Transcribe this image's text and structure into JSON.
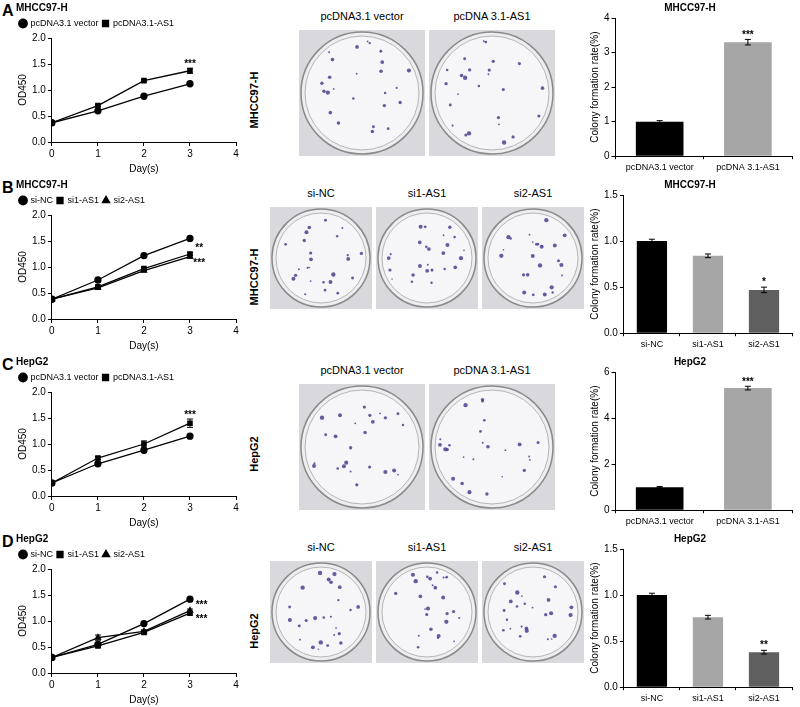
{
  "chart_data": [
    {
      "type": "line",
      "title": "MHCC97-H",
      "x_label": "Day(s)",
      "y_label": "OD450",
      "x": [
        0,
        1,
        2,
        3
      ],
      "series": [
        {
          "name": "pcDNA3.1 vector",
          "color": "#000000",
          "marker": "circle",
          "line_style": "solid",
          "values": [
            0.37,
            0.6,
            0.88,
            1.12
          ],
          "errors": [
            0.01,
            0.02,
            0.02,
            0.03
          ]
        },
        {
          "name": "pcDNA3.1-AS1",
          "color": "#000000",
          "marker": "square",
          "line_style": "solid",
          "values": [
            0.37,
            0.7,
            1.18,
            1.37
          ],
          "errors": [
            0.01,
            0.02,
            0.02,
            0.05
          ]
        }
      ],
      "xlim": [
        0,
        4
      ],
      "xticks": [
        0,
        1,
        2,
        3,
        4
      ],
      "ylim": [
        0,
        2
      ],
      "yticks": [
        {
          "value": 0,
          "label": "0.0"
        },
        {
          "value": 0.5,
          "label": "0.5"
        },
        {
          "value": 1,
          "label": "1.0"
        },
        {
          "value": 1.5,
          "label": "1.5"
        },
        {
          "value": 2,
          "label": "2.0"
        }
      ],
      "grid": false,
      "legend": "upper left",
      "annotations": [
        {
          "text": "***",
          "x": 3,
          "y": 1.5
        }
      ]
    },
    {
      "type": "bar",
      "title": "MHCC97-H",
      "y_label": "Colony formation rate(%)",
      "categories": [
        "pcDNA3.1 vector",
        "pcDNA 3.1-AS1"
      ],
      "values": [
        1.0,
        3.3
      ],
      "errors": [
        0.03,
        0.08
      ],
      "colors": [
        "#000000",
        "#a6a6a6"
      ],
      "ylim": [
        0,
        4
      ],
      "yticks": [
        0,
        1,
        2,
        3,
        4
      ],
      "grid": false,
      "annotations": [
        {
          "text": "***",
          "x": "pcDNA 3.1-AS1",
          "y": 3.5
        }
      ]
    },
    {
      "type": "line",
      "title": "MHCC97-H",
      "x_label": "Day(s)",
      "y_label": "OD450",
      "x": [
        0,
        1,
        2,
        3
      ],
      "series": [
        {
          "name": "si-NC",
          "color": "#000000",
          "marker": "circle",
          "line_style": "solid",
          "values": [
            0.38,
            0.75,
            1.22,
            1.55
          ],
          "errors": [
            0.01,
            0.02,
            0.02,
            0.02
          ]
        },
        {
          "name": "si1-AS1",
          "color": "#000000",
          "marker": "square",
          "line_style": "solid",
          "values": [
            0.38,
            0.62,
            0.97,
            1.25
          ],
          "errors": [
            0.01,
            0.02,
            0.02,
            0.03
          ]
        },
        {
          "name": "si2-AS1",
          "color": "#000000",
          "marker": "triangle",
          "line_style": "solid",
          "values": [
            0.38,
            0.6,
            0.93,
            1.2
          ],
          "errors": [
            0.01,
            0.02,
            0.02,
            0.03
          ]
        }
      ],
      "xlim": [
        0,
        4
      ],
      "xticks": [
        0,
        1,
        2,
        3,
        4
      ],
      "ylim": [
        0,
        2
      ],
      "yticks": [
        {
          "value": 0,
          "label": "0.0"
        },
        {
          "value": 0.5,
          "label": "0.5"
        },
        {
          "value": 1,
          "label": "1.0"
        },
        {
          "value": 1.5,
          "label": "1.5"
        },
        {
          "value": 2,
          "label": "2.0"
        }
      ],
      "grid": false,
      "legend": "upper left",
      "annotations": [
        {
          "text": "**",
          "x": 3.2,
          "y": 1.36
        },
        {
          "text": "***",
          "x": 3.2,
          "y": 1.08
        }
      ]
    },
    {
      "type": "bar",
      "title": "MHCC97-H",
      "y_label": "Colony formation rate(%)",
      "categories": [
        "si-NC",
        "si1-AS1",
        "si2-AS1"
      ],
      "values": [
        1.0,
        0.84,
        0.47
      ],
      "errors": [
        0.02,
        0.02,
        0.03
      ],
      "colors": [
        "#000000",
        "#a6a6a6",
        "#5f5f5f"
      ],
      "ylim": [
        0,
        1.5
      ],
      "yticks": [
        {
          "value": 0,
          "label": "0.0"
        },
        {
          "value": 0.5,
          "label": "0.5"
        },
        {
          "value": 1,
          "label": "1.0"
        },
        {
          "value": 1.5,
          "label": "1.5"
        }
      ],
      "grid": false,
      "annotations": [
        {
          "text": "*",
          "x": "si2-AS1",
          "y": 0.55
        }
      ]
    },
    {
      "type": "line",
      "title": "HepG2",
      "x_label": "Day(s)",
      "y_label": "OD450",
      "x": [
        0,
        1,
        2,
        3
      ],
      "series": [
        {
          "name": "pcDNA3.1 vector",
          "color": "#000000",
          "marker": "circle",
          "line_style": "solid",
          "values": [
            0.25,
            0.62,
            0.88,
            1.15
          ],
          "errors": [
            0.01,
            0.02,
            0.03,
            0.03
          ]
        },
        {
          "name": "pcDNA3.1-AS1",
          "color": "#000000",
          "marker": "square",
          "line_style": "solid",
          "values": [
            0.25,
            0.73,
            1.0,
            1.4
          ],
          "errors": [
            0.01,
            0.03,
            0.06,
            0.08
          ]
        }
      ],
      "xlim": [
        0,
        4
      ],
      "xticks": [
        0,
        1,
        2,
        3,
        4
      ],
      "ylim": [
        0,
        2
      ],
      "yticks": [
        {
          "value": 0,
          "label": "0.0"
        },
        {
          "value": 0.5,
          "label": "0.5"
        },
        {
          "value": 1,
          "label": "1.0"
        },
        {
          "value": 1.5,
          "label": "1.5"
        },
        {
          "value": 2,
          "label": "2.0"
        }
      ],
      "grid": false,
      "legend": "upper left",
      "annotations": [
        {
          "text": "***",
          "x": 3,
          "y": 1.56
        }
      ]
    },
    {
      "type": "bar",
      "title": "HepG2",
      "y_label": "Colony formation rate(%)",
      "categories": [
        "pcDNA3.1 vector",
        "pcDNA 3.1-AS1"
      ],
      "values": [
        1.0,
        5.3
      ],
      "errors": [
        0.03,
        0.08
      ],
      "colors": [
        "#000000",
        "#a6a6a6"
      ],
      "ylim": [
        0,
        6
      ],
      "yticks": [
        0,
        2,
        4,
        6
      ],
      "grid": false,
      "annotations": [
        {
          "text": "***",
          "x": "pcDNA 3.1-AS1",
          "y": 5.55
        }
      ]
    },
    {
      "type": "line",
      "title": "HepG2",
      "x_label": "Day(s)",
      "y_label": "OD450",
      "x": [
        0,
        1,
        2,
        3
      ],
      "series": [
        {
          "name": "si-NC",
          "color": "#000000",
          "marker": "circle",
          "line_style": "solid",
          "values": [
            0.3,
            0.55,
            0.95,
            1.42
          ],
          "errors": [
            0.01,
            0.03,
            0.03,
            0.02
          ]
        },
        {
          "name": "si1-AS1",
          "color": "#000000",
          "marker": "square",
          "line_style": "solid",
          "values": [
            0.3,
            0.52,
            0.78,
            1.15
          ],
          "errors": [
            0.01,
            0.03,
            0.03,
            0.03
          ]
        },
        {
          "name": "si2-AS1",
          "color": "#000000",
          "marker": "triangle",
          "line_style": "solid",
          "values": [
            0.3,
            0.68,
            0.8,
            1.2
          ],
          "errors": [
            0.01,
            0.05,
            0.03,
            0.03
          ]
        }
      ],
      "xlim": [
        0,
        4
      ],
      "xticks": [
        0,
        1,
        2,
        3,
        4
      ],
      "ylim": [
        0,
        2
      ],
      "yticks": [
        {
          "value": 0,
          "label": "0.0"
        },
        {
          "value": 0.5,
          "label": "0.5"
        },
        {
          "value": 1,
          "label": "1.0"
        },
        {
          "value": 1.5,
          "label": "1.5"
        },
        {
          "value": 2,
          "label": "2.0"
        }
      ],
      "grid": false,
      "legend": "upper left",
      "annotations": [
        {
          "text": "***",
          "x": 3.25,
          "y": 1.3
        },
        {
          "text": "***",
          "x": 3.25,
          "y": 1.04
        }
      ]
    },
    {
      "type": "bar",
      "title": "HepG2",
      "y_label": "Colony formation rate(%)",
      "categories": [
        "si-NC",
        "si1-AS1",
        "si2-AS1"
      ],
      "values": [
        1.0,
        0.76,
        0.38
      ],
      "errors": [
        0.02,
        0.02,
        0.02
      ],
      "colors": [
        "#000000",
        "#a6a6a6",
        "#5f5f5f"
      ],
      "ylim": [
        0,
        1.5
      ],
      "yticks": [
        {
          "value": 0,
          "label": "0.0"
        },
        {
          "value": 0.5,
          "label": "0.5"
        },
        {
          "value": 1,
          "label": "1.0"
        },
        {
          "value": 1.5,
          "label": "1.5"
        }
      ],
      "grid": false,
      "annotations": [
        {
          "text": "**",
          "x": "si2-AS1",
          "y": 0.45
        }
      ]
    }
  ],
  "panels": [
    {
      "letter": "A",
      "image_label": "MHCC97-H",
      "plate_labels": [
        "pcDNA3.1 vector",
        "pcDNA 3.1-AS1"
      ]
    },
    {
      "letter": "B",
      "image_label": "MHCC97-H",
      "plate_labels": [
        "si-NC",
        "si1-AS1",
        "si2-AS1"
      ]
    },
    {
      "letter": "C",
      "image_label": "HepG2",
      "plate_labels": [
        "pcDNA3.1 vector",
        "pcDNA 3.1-AS1"
      ]
    },
    {
      "letter": "D",
      "image_label": "HepG2",
      "plate_labels": [
        "si-NC",
        "si1-AS1",
        "si2-AS1"
      ]
    }
  ]
}
